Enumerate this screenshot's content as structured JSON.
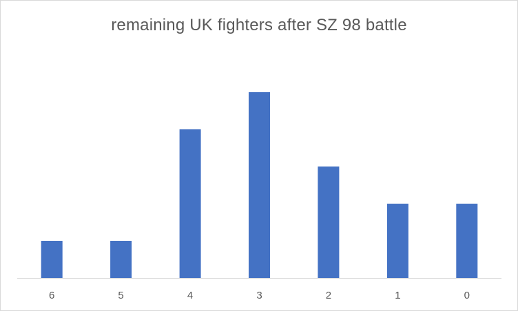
{
  "chart_data": {
    "type": "bar",
    "title": "remaining UK fighters after SZ 98 battle",
    "categories": [
      "6",
      "5",
      "4",
      "3",
      "2",
      "1",
      "0"
    ],
    "values": [
      1,
      1,
      4,
      5,
      3,
      2,
      2
    ],
    "xlabel": "",
    "ylabel": "",
    "ylim": [
      0,
      5.4
    ],
    "grid": false,
    "legend": "none",
    "bar_color": "#4472C4",
    "axis_color": "#D9D9D9",
    "text_color": "#595959"
  }
}
